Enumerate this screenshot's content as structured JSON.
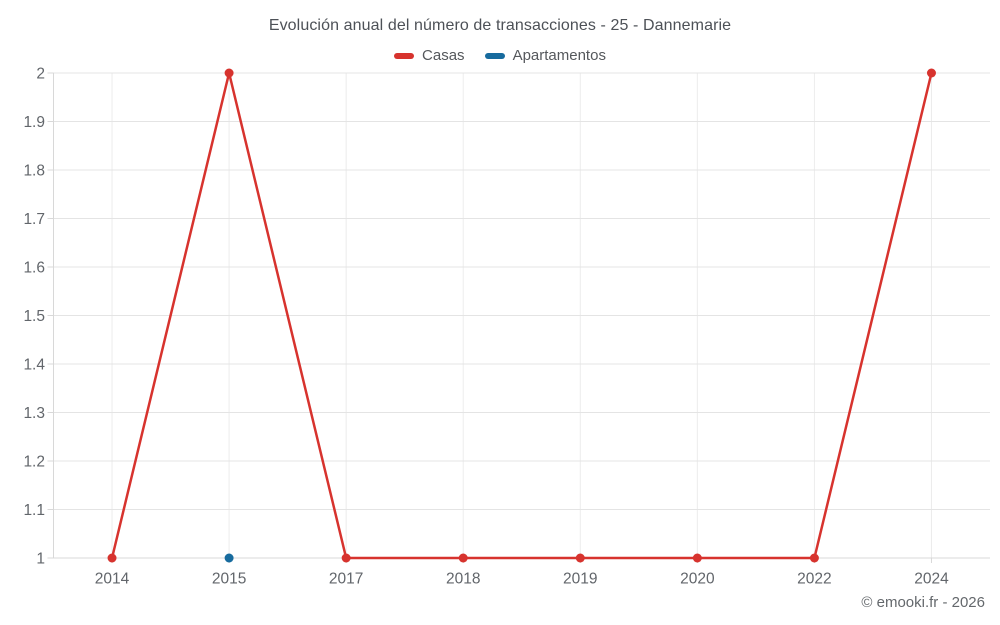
{
  "chart": {
    "title": "Evolución anual del número de transacciones - 25 - Dannemarie",
    "copyright": "© emooki.fr - 2026"
  },
  "chart_data": {
    "type": "line",
    "title": "Evolución anual del número de transacciones - 25 - Dannemarie",
    "categories": [
      "2014",
      "2015",
      "2017",
      "2018",
      "2019",
      "2020",
      "2022",
      "2024"
    ],
    "series": [
      {
        "name": "Casas",
        "color": "#d7332e",
        "values": [
          1,
          2,
          1,
          1,
          1,
          1,
          1,
          2
        ]
      },
      {
        "name": "Apartamentos",
        "color": "#176b9e",
        "values": [
          null,
          1,
          null,
          null,
          null,
          null,
          null,
          null
        ]
      }
    ],
    "ylim": [
      1,
      2
    ],
    "yticks": {
      "values": [
        1,
        1.1,
        1.2,
        1.3,
        1.4,
        1.5,
        1.6,
        1.7,
        1.8,
        1.9,
        2
      ],
      "labels": [
        "1",
        "1.1",
        "1.2",
        "1.3",
        "1.4",
        "1.5",
        "1.6",
        "1.7",
        "1.8",
        "1.9",
        "2"
      ]
    },
    "grid": true,
    "legend_position": "top",
    "colors": {
      "grid_horizontal": "#e4e4e4",
      "grid_vertical": "#ececec",
      "axis": "#d8d8d8",
      "tick_text": "#62666b"
    }
  }
}
